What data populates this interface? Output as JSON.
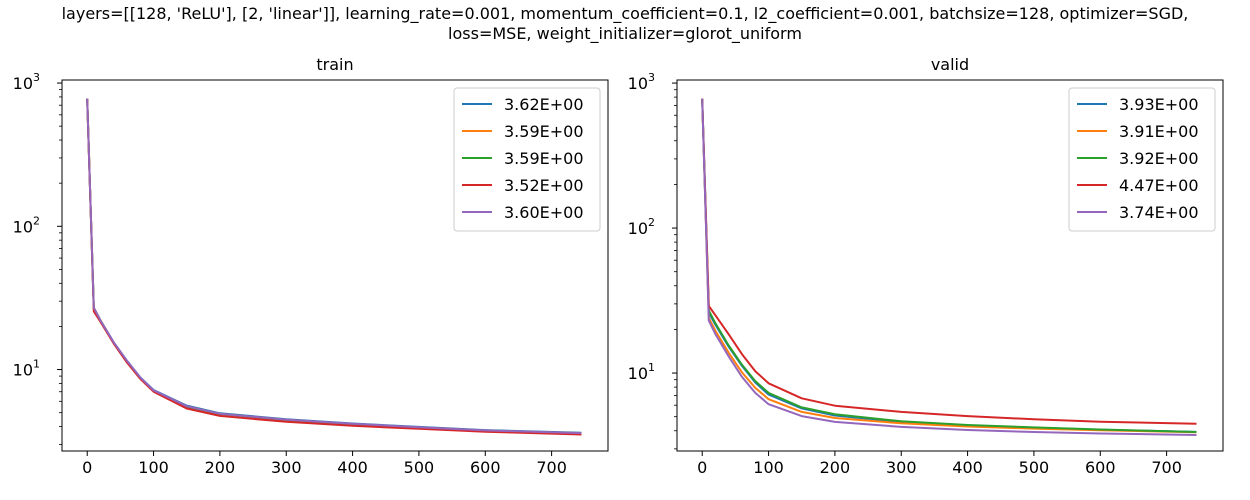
{
  "figure": {
    "suptitle_line1": "layers=[[128, 'ReLU'], [2, 'linear']], learning_rate=0.001, momentum_coefficient=0.1, l2_coefficient=0.001, batchsize=128, optimizer=SGD,",
    "suptitle_line2": "loss=MSE, weight_initializer=glorot_uniform"
  },
  "chart_data": [
    {
      "type": "line",
      "title": "train",
      "xlabel": "",
      "ylabel": "",
      "yscale": "log",
      "xlim": [
        -38,
        785
      ],
      "ylim": [
        2.7,
        1050
      ],
      "xticks": [
        0,
        100,
        200,
        300,
        400,
        500,
        600,
        700
      ],
      "yticks": [
        {
          "value": 10,
          "label": "10",
          "exp": "1"
        },
        {
          "value": 100,
          "label": "10",
          "exp": "2"
        },
        {
          "value": 1000,
          "label": "10",
          "exp": "3"
        }
      ],
      "grid": false,
      "legend_position": "upper right",
      "series": [
        {
          "name": "3.62E+00",
          "color": "#1f77b4",
          "x": [
            0,
            10,
            20,
            40,
            60,
            80,
            100,
            150,
            200,
            300,
            400,
            500,
            600,
            745
          ],
          "y": [
            780,
            27,
            22,
            15.5,
            11.5,
            8.8,
            7.2,
            5.6,
            4.95,
            4.5,
            4.2,
            3.98,
            3.78,
            3.62
          ]
        },
        {
          "name": "3.59E+00",
          "color": "#ff7f0e",
          "x": [
            0,
            10,
            20,
            40,
            60,
            80,
            100,
            150,
            200,
            300,
            400,
            500,
            600,
            745
          ],
          "y": [
            780,
            27,
            22,
            15.4,
            11.4,
            8.7,
            7.1,
            5.5,
            4.9,
            4.45,
            4.15,
            3.94,
            3.75,
            3.59
          ]
        },
        {
          "name": "3.59E+00",
          "color": "#2ca02c",
          "x": [
            0,
            10,
            20,
            40,
            60,
            80,
            100,
            150,
            200,
            300,
            400,
            500,
            600,
            745
          ],
          "y": [
            780,
            26.5,
            22,
            15.4,
            11.4,
            8.7,
            7.1,
            5.5,
            4.9,
            4.45,
            4.15,
            3.94,
            3.75,
            3.59
          ]
        },
        {
          "name": "3.52E+00",
          "color": "#d62728",
          "x": [
            0,
            10,
            20,
            40,
            60,
            80,
            100,
            150,
            200,
            300,
            400,
            500,
            600,
            745
          ],
          "y": [
            780,
            25.5,
            21.5,
            15.2,
            11.2,
            8.6,
            7.0,
            5.35,
            4.75,
            4.32,
            4.05,
            3.86,
            3.68,
            3.52
          ]
        },
        {
          "name": "3.60E+00",
          "color": "#9467bd",
          "x": [
            0,
            10,
            20,
            40,
            60,
            80,
            100,
            150,
            200,
            300,
            400,
            500,
            600,
            745
          ],
          "y": [
            780,
            27,
            22,
            15.5,
            11.5,
            8.8,
            7.15,
            5.55,
            4.92,
            4.47,
            4.18,
            3.96,
            3.76,
            3.6
          ]
        }
      ]
    },
    {
      "type": "line",
      "title": "valid",
      "xlabel": "",
      "ylabel": "",
      "yscale": "log",
      "xlim": [
        -38,
        785
      ],
      "ylim": [
        2.9,
        1050
      ],
      "xticks": [
        0,
        100,
        200,
        300,
        400,
        500,
        600,
        700
      ],
      "yticks": [
        {
          "value": 10,
          "label": "10",
          "exp": "1"
        },
        {
          "value": 100,
          "label": "10",
          "exp": "2"
        },
        {
          "value": 1000,
          "label": "10",
          "exp": "3"
        }
      ],
      "grid": false,
      "legend_position": "upper right",
      "series": [
        {
          "name": "3.93E+00",
          "color": "#1f77b4",
          "x": [
            0,
            10,
            20,
            40,
            60,
            80,
            100,
            150,
            200,
            300,
            400,
            500,
            600,
            745
          ],
          "y": [
            780,
            26,
            21.5,
            15.2,
            11.2,
            8.6,
            7.1,
            5.7,
            5.1,
            4.6,
            4.35,
            4.2,
            4.07,
            3.93
          ]
        },
        {
          "name": "3.91E+00",
          "color": "#ff7f0e",
          "x": [
            0,
            10,
            20,
            40,
            60,
            80,
            100,
            150,
            200,
            300,
            400,
            500,
            600,
            745
          ],
          "y": [
            780,
            24,
            19.5,
            13.8,
            10.1,
            7.9,
            6.6,
            5.4,
            4.9,
            4.5,
            4.28,
            4.14,
            4.03,
            3.91
          ]
        },
        {
          "name": "3.92E+00",
          "color": "#2ca02c",
          "x": [
            0,
            10,
            20,
            40,
            60,
            80,
            100,
            150,
            200,
            300,
            400,
            500,
            600,
            745
          ],
          "y": [
            780,
            27,
            22,
            15.5,
            11.4,
            8.8,
            7.3,
            5.8,
            5.2,
            4.65,
            4.38,
            4.22,
            4.08,
            3.92
          ]
        },
        {
          "name": "4.47E+00",
          "color": "#d62728",
          "x": [
            0,
            10,
            20,
            40,
            60,
            80,
            100,
            150,
            200,
            300,
            400,
            500,
            600,
            745
          ],
          "y": [
            780,
            29,
            25,
            18.5,
            13.5,
            10.3,
            8.5,
            6.7,
            5.95,
            5.4,
            5.05,
            4.8,
            4.62,
            4.47
          ]
        },
        {
          "name": "3.74E+00",
          "color": "#9467bd",
          "x": [
            0,
            10,
            20,
            40,
            60,
            80,
            100,
            150,
            200,
            300,
            400,
            500,
            600,
            745
          ],
          "y": [
            780,
            23,
            18.5,
            13,
            9.4,
            7.3,
            6.1,
            5.05,
            4.6,
            4.25,
            4.05,
            3.92,
            3.83,
            3.74
          ]
        }
      ]
    }
  ]
}
